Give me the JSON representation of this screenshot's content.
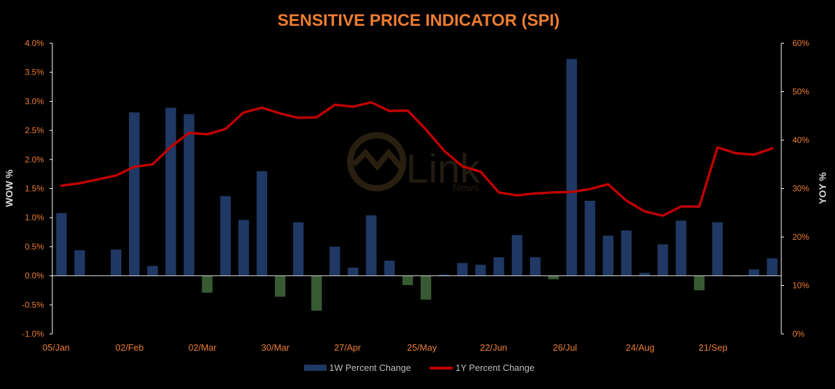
{
  "chart_data": {
    "type": "bar",
    "title": "SENSITIVE PRICE INDICATOR (SPI)",
    "ylabel": "WOW %",
    "y2label": "YOY %",
    "ylim": [
      -0.01,
      0.04
    ],
    "y2lim": [
      0.0,
      0.6
    ],
    "yticks": [
      "-1.0%",
      "-0.5%",
      "0.0%",
      "0.5%",
      "1.0%",
      "1.5%",
      "2.0%",
      "2.5%",
      "3.0%",
      "3.5%",
      "4.0%"
    ],
    "y2ticks": [
      "0%",
      "10%",
      "20%",
      "30%",
      "40%",
      "50%",
      "60%"
    ],
    "xticks": [
      {
        "index": 0,
        "label": "05/Jan"
      },
      {
        "index": 4,
        "label": "02/Feb"
      },
      {
        "index": 8,
        "label": "02/Mar"
      },
      {
        "index": 12,
        "label": "30/Mar"
      },
      {
        "index": 16,
        "label": "27/Apr"
      },
      {
        "index": 20,
        "label": "25/May"
      },
      {
        "index": 24,
        "label": "22/Jun"
      },
      {
        "index": 28,
        "label": "26/Jul"
      },
      {
        "index": 32,
        "label": "24/Aug"
      },
      {
        "index": 36,
        "label": "21/Sep"
      }
    ],
    "series": [
      {
        "name": "1W Percent Change",
        "kind": "bar",
        "axis": "left",
        "positive_color": "#1f3864",
        "negative_color": "#375a33",
        "values": [
          1.08,
          0.44,
          0.01,
          0.45,
          2.81,
          0.17,
          2.89,
          2.78,
          -0.29,
          1.37,
          0.96,
          1.8,
          -0.36,
          0.92,
          -0.6,
          0.5,
          0.14,
          1.04,
          0.26,
          -0.16,
          -0.41,
          0.02,
          0.22,
          0.19,
          0.32,
          0.7,
          0.32,
          -0.06,
          3.73,
          1.29,
          0.69,
          0.78,
          0.05,
          0.54,
          0.95,
          -0.25,
          0.92,
          -0.01,
          0.11,
          0.3
        ]
      },
      {
        "name": "1Y Percent Change",
        "kind": "line",
        "axis": "right",
        "color": "#c00000",
        "values": [
          30.6,
          31.1,
          31.9,
          32.7,
          34.5,
          35.0,
          38.6,
          41.5,
          41.2,
          42.3,
          45.7,
          46.7,
          45.5,
          44.6,
          44.7,
          47.3,
          46.9,
          47.8,
          46.0,
          46.1,
          42.2,
          37.8,
          34.6,
          33.5,
          29.2,
          28.6,
          29.0,
          29.2,
          29.3,
          29.9,
          30.9,
          27.5,
          25.3,
          24.4,
          26.3,
          26.3,
          38.5,
          37.3,
          37.0,
          38.3
        ]
      }
    ],
    "legend": "bottom",
    "grid": false,
    "watermark": {
      "line1": "Link",
      "line2": "News"
    }
  }
}
